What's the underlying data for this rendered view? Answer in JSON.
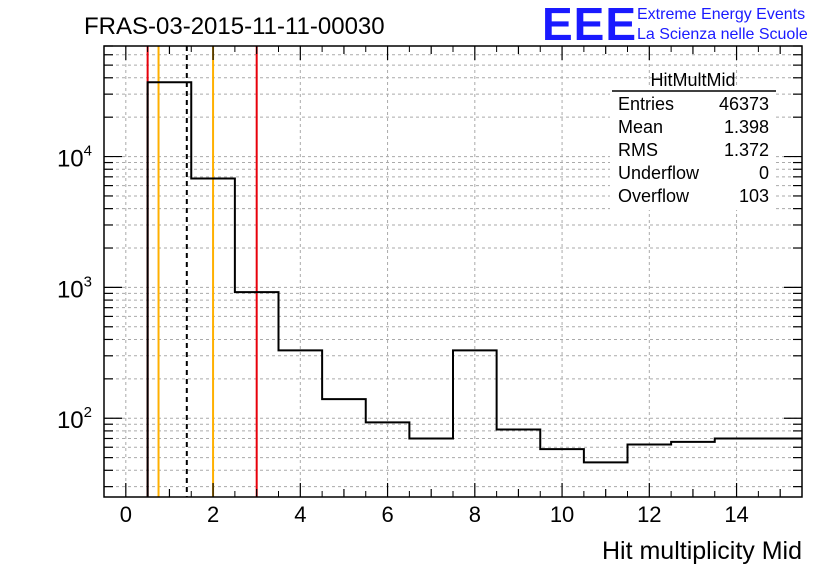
{
  "header": {
    "run_title": "FRAS-03-2015-11-11-00030",
    "logo_text": "EEE",
    "logo_line1": "Extreme Energy Events",
    "logo_line2": "La Scienza nelle Scuole",
    "logo_color": "#1a1aff"
  },
  "stats_box": {
    "title": "HitMultMid",
    "rows": [
      {
        "label": "Entries",
        "value": "46373"
      },
      {
        "label": "Mean",
        "value": "1.398"
      },
      {
        "label": "RMS",
        "value": "1.372"
      },
      {
        "label": "Underflow",
        "value": "0"
      },
      {
        "label": "Overflow",
        "value": "103"
      }
    ]
  },
  "chart_data": {
    "type": "histogram",
    "xlabel": "Hit multiplicity Mid",
    "ylabel": "",
    "xlim": [
      -0.5,
      15.5
    ],
    "ylim": [
      25,
      70000
    ],
    "yscale": "log",
    "grid": true,
    "bin_edges": [
      0.5,
      1.5,
      2.5,
      3.5,
      4.5,
      5.5,
      6.5,
      7.5,
      8.5,
      9.5,
      10.5,
      11.5,
      12.5,
      13.5,
      14.5,
      15.5
    ],
    "values": [
      37000,
      6800,
      920,
      330,
      140,
      93,
      70,
      330,
      82,
      58,
      46,
      63,
      66,
      70,
      70
    ],
    "x_ticks": [
      "0",
      "2",
      "4",
      "6",
      "8",
      "10",
      "12",
      "14"
    ],
    "y_ticks": [
      {
        "base": "10",
        "exp": "2"
      },
      {
        "base": "10",
        "exp": "3"
      },
      {
        "base": "10",
        "exp": "4"
      }
    ],
    "vertical_lines": [
      {
        "x": 0.5,
        "color": "#e8000b",
        "style": "solid"
      },
      {
        "x": 0.75,
        "color": "#ffb000",
        "style": "solid"
      },
      {
        "x": 1.398,
        "color": "#000000",
        "style": "dashed"
      },
      {
        "x": 2.0,
        "color": "#ffb000",
        "style": "solid"
      },
      {
        "x": 3.0,
        "color": "#e8000b",
        "style": "solid"
      }
    ]
  }
}
